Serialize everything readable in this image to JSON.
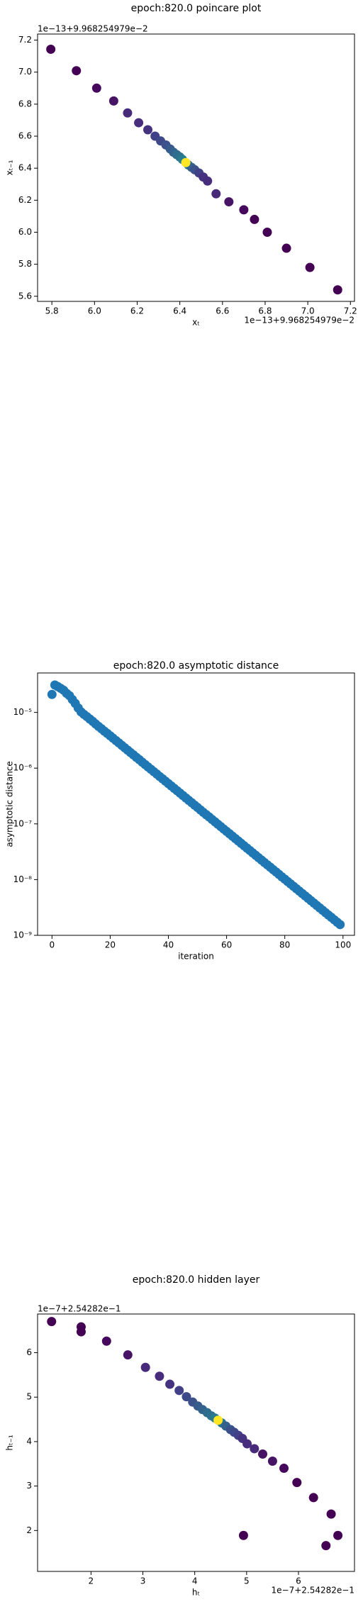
{
  "chart_data": [
    {
      "type": "scatter",
      "title": "epoch:820.0 poincare plot",
      "xlabel": "xₜ",
      "ylabel": "xₜ₋₁",
      "x_offset": "1e−13+9.968254979e−2",
      "y_offset": "1e−13+9.968254979e−2",
      "xlim": [
        5.733,
        7.219
      ],
      "ylim": [
        5.568,
        7.238
      ],
      "xticks": [
        5.8,
        {
          "value": 6,
          "label": "6.0"
        },
        6.2,
        6.4,
        6.6,
        6.8,
        {
          "value": 7,
          "label": "7.0"
        },
        7.2
      ],
      "yticks": [
        5.6,
        5.8,
        {
          "value": 6,
          "label": "6.0"
        },
        6.2,
        6.4,
        6.6,
        6.8,
        {
          "value": 7,
          "label": "7.0"
        },
        7.2
      ],
      "x": [
        5.795,
        5.915,
        6.01,
        6.09,
        6.155,
        6.207,
        6.25,
        6.284,
        6.31,
        6.335,
        6.355,
        6.37,
        6.385,
        6.4,
        6.412,
        6.44,
        6.455,
        6.47,
        6.49,
        6.51,
        6.53,
        6.57,
        6.63,
        6.7,
        6.75,
        6.81,
        6.9,
        7.01,
        7.14,
        6.428
      ],
      "y": [
        7.143,
        7.009,
        6.9,
        6.82,
        6.745,
        6.684,
        6.64,
        6.6,
        6.57,
        6.545,
        6.52,
        6.5,
        6.485,
        6.47,
        6.455,
        6.42,
        6.405,
        6.39,
        6.37,
        6.345,
        6.32,
        6.24,
        6.19,
        6.14,
        6.08,
        6.0,
        5.9,
        5.78,
        5.64,
        6.435
      ],
      "colors": [
        "#440154",
        "#440154",
        "#46085c",
        "#471365",
        "#472a7a",
        "#472d7b",
        "#46337f",
        "#424086",
        "#3e4989",
        "#3b528b",
        "#375b8d",
        "#33638d",
        "#2f6c8e",
        "#2c728e",
        "#287c8e",
        "#2c728e",
        "#33638d",
        "#3b528b",
        "#424086",
        "#46337f",
        "#472d7b",
        "#472a7a",
        "#471365",
        "#46085c",
        "#440154",
        "#440154",
        "#440154",
        "#440154",
        "#440154",
        "#fde725"
      ]
    },
    {
      "type": "scatter",
      "title": "epoch:820.0 asymptotic distance",
      "xlabel": "iteration",
      "ylabel": "asymptotic distance",
      "log_y": true,
      "color": "#1f77b4",
      "xlim": [
        -4.95,
        103.95
      ],
      "ylim": [
        1e-09,
        5.1e-05
      ],
      "xticks": [
        0,
        20,
        40,
        60,
        80,
        100
      ],
      "yticks": [
        {
          "value": 1e-09,
          "label": "10⁻⁹"
        },
        {
          "value": 1e-08,
          "label": "10⁻⁸"
        },
        {
          "value": 1e-07,
          "label": "10⁻⁷"
        },
        {
          "value": 1e-06,
          "label": "10⁻⁶"
        },
        {
          "value": 1e-05,
          "label": "10⁻⁵"
        }
      ],
      "x": [
        0,
        1,
        2,
        3,
        4,
        5,
        6,
        7,
        8,
        9,
        10,
        11,
        12,
        13,
        14,
        15,
        16,
        17,
        18,
        19,
        20,
        21,
        22,
        23,
        24,
        25,
        26,
        27,
        28,
        29,
        30,
        31,
        32,
        33,
        34,
        35,
        36,
        37,
        38,
        39,
        40,
        41,
        42,
        43,
        44,
        45,
        46,
        47,
        48,
        49,
        50,
        51,
        52,
        53,
        54,
        55,
        56,
        57,
        58,
        59,
        60,
        61,
        62,
        63,
        64,
        65,
        66,
        67,
        68,
        69,
        70,
        71,
        72,
        73,
        74,
        75,
        76,
        77,
        78,
        79,
        80,
        81,
        82,
        83,
        84,
        85,
        86,
        87,
        88,
        89,
        90,
        91,
        92,
        93,
        94,
        95,
        96,
        97,
        98,
        99
      ],
      "y": [
        2.1e-05,
        3.1e-05,
        2.9e-05,
        2.7e-05,
        2.5e-05,
        2.2e-05,
        2e-05,
        1.7e-05,
        1.45e-05,
        1.2e-05,
        1.02e-05,
        9.2e-06,
        8.4e-06,
        7.6e-06,
        6.9e-06,
        6.2e-06,
        5.6e-06,
        5.1e-06,
        4.6e-06,
        4.2e-06,
        3.8e-06,
        3.44e-06,
        3.12e-06,
        2.83e-06,
        2.56e-06,
        2.32e-06,
        2.1e-06,
        1.9e-06,
        1.73e-06,
        1.56e-06,
        1.42e-06,
        1.28e-06,
        1.16e-06,
        1.05e-06,
        9.54e-07,
        8.64e-07,
        7.83e-07,
        7.09e-07,
        6.43e-07,
        5.82e-07,
        5.28e-07,
        4.78e-07,
        4.33e-07,
        3.93e-07,
        3.56e-07,
        3.22e-07,
        2.92e-07,
        2.64e-07,
        2.4e-07,
        2.17e-07,
        1.97e-07,
        1.78e-07,
        1.61e-07,
        1.46e-07,
        1.33e-07,
        1.2e-07,
        1.09e-07,
        9.85e-08,
        8.93e-08,
        8.08e-08,
        7.33e-08,
        6.64e-08,
        6.02e-08,
        5.45e-08,
        4.94e-08,
        4.47e-08,
        4.05e-08,
        3.67e-08,
        3.33e-08,
        3.01e-08,
        2.73e-08,
        2.47e-08,
        2.24e-08,
        2.03e-08,
        1.84e-08,
        1.67e-08,
        1.51e-08,
        1.37e-08,
        1.24e-08,
        1.12e-08,
        1.02e-08,
        9.21e-09,
        8.35e-09,
        7.57e-09,
        6.86e-09,
        6.21e-09,
        5.63e-09,
        5.1e-09,
        4.62e-09,
        4.18e-09,
        3.79e-09,
        3.43e-09,
        3.11e-09,
        2.82e-09,
        2.55e-09,
        2.31e-09,
        2.1e-09,
        1.9e-09,
        1.72e-09,
        1.56e-09
      ]
    },
    {
      "type": "scatter",
      "title": "epoch:820.0 hidden layer",
      "xlabel": "hₜ",
      "ylabel": "hₜ₋₁",
      "x_offset": "1e−7+2.54282e−1",
      "y_offset": "1e−7+2.54282e−1",
      "xlim": [
        0.97,
        7.08
      ],
      "ylim": [
        1.08,
        6.87
      ],
      "xticks": [
        2,
        3,
        4,
        5,
        6
      ],
      "yticks": [
        2,
        3,
        4,
        5,
        6
      ],
      "x": [
        1.24,
        1.81,
        1.81,
        2.3,
        2.71,
        3.05,
        3.32,
        3.52,
        3.7,
        3.84,
        3.96,
        4.06,
        4.15,
        4.24,
        4.32,
        4.39,
        4.52,
        4.6,
        4.69,
        4.76,
        4.84,
        4.92,
        5.01,
        5.15,
        5.31,
        5.5,
        5.72,
        5.97,
        6.29,
        6.63,
        6.76,
        6.53,
        4.94,
        4.45
      ],
      "y": [
        6.7,
        6.58,
        6.47,
        6.26,
        5.95,
        5.67,
        5.47,
        5.29,
        5.15,
        5.01,
        4.89,
        4.8,
        4.72,
        4.65,
        4.58,
        4.53,
        4.42,
        4.35,
        4.27,
        4.21,
        4.14,
        4.07,
        3.95,
        3.84,
        3.72,
        3.56,
        3.4,
        3.08,
        2.74,
        2.37,
        1.89,
        1.66,
        1.89,
        4.48
      ],
      "colors": [
        "#440154",
        "#440154",
        "#440154",
        "#46085c",
        "#471365",
        "#472a7a",
        "#472d7b",
        "#46337f",
        "#424086",
        "#3e4989",
        "#3b528b",
        "#375b8d",
        "#33638d",
        "#2f6c8e",
        "#2c728e",
        "#287c8e",
        "#2c728e",
        "#33638d",
        "#3b528b",
        "#3e4989",
        "#424086",
        "#46337f",
        "#472d7b",
        "#472a7a",
        "#471365",
        "#471365",
        "#46085c",
        "#440154",
        "#440154",
        "#440154",
        "#440154",
        "#440154",
        "#440154",
        "#fde725"
      ]
    }
  ]
}
